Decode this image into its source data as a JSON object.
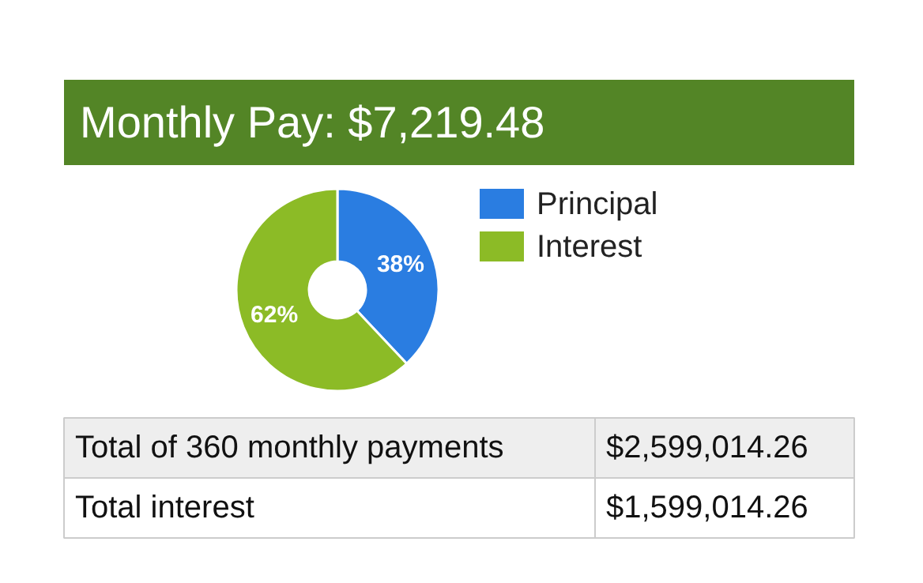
{
  "chart_data": {
    "type": "donut",
    "title": "Monthly Pay:   $7,219.48",
    "categories": [
      "Principal",
      "Interest"
    ],
    "values": [
      38,
      62
    ],
    "colors": [
      "#2a7de1",
      "#8cbb26"
    ],
    "value_labels": [
      "38%",
      "62%"
    ],
    "legend": "right",
    "annotations": [
      "Total of 360 monthly payments",
      "$2,599,014.26",
      "Total interest",
      "$1,599,014.26"
    ]
  }
}
